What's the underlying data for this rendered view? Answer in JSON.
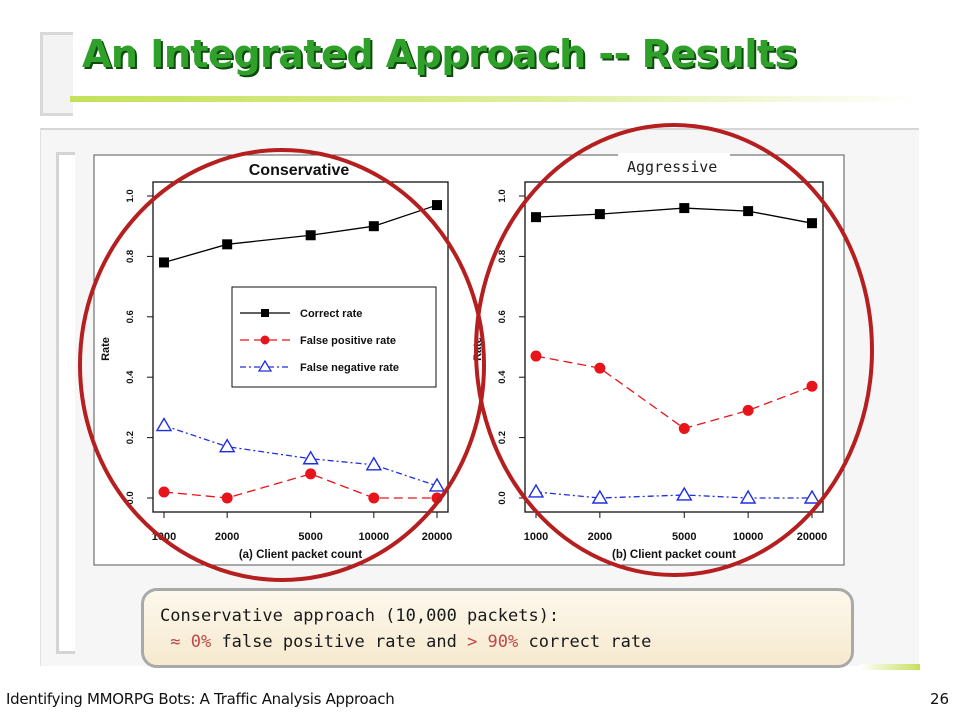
{
  "slide": {
    "title": "An Integrated Approach -- Results",
    "footer_left": "Identifying MMORPG Bots: A Traffic Analysis Approach",
    "page_number": "26"
  },
  "group_labels": {
    "conservative": "Conservative",
    "aggressive": "Aggressive"
  },
  "callout": {
    "line1": "Conservative approach (10,000 packets):",
    "line2_prefix": "≈ 0%",
    "line2_mid1": " false positive rate and ",
    "line2_gt": "> 90%",
    "line2_suffix": " correct rate"
  },
  "colors": {
    "title": "#2fa12a",
    "correct": "#000000",
    "false_positive": "#e8141b",
    "false_negative": "#1f2ee0",
    "highlight_ellipse": "#b51f1f"
  },
  "chart_data": [
    {
      "type": "line",
      "title": "Conservative",
      "xlabel": "(a) Client packet count",
      "ylabel": "Rate",
      "x_scale": "log",
      "categories": [
        "1000",
        "2000",
        "5000",
        "10000",
        "20000"
      ],
      "x": [
        1000,
        2000,
        5000,
        10000,
        20000
      ],
      "ylim": [
        0,
        1
      ],
      "yticks": [
        "0.0",
        "0.2",
        "0.4",
        "0.6",
        "0.8",
        "1.0"
      ],
      "legend": "center-right",
      "series": [
        {
          "name": "Correct rate",
          "marker": "square",
          "values": [
            0.78,
            0.84,
            0.87,
            0.9,
            0.97
          ]
        },
        {
          "name": "False positive rate",
          "marker": "circle",
          "values": [
            0.02,
            0.0,
            0.08,
            0.0,
            0.0
          ]
        },
        {
          "name": "False negative rate",
          "marker": "triangle",
          "values": [
            0.24,
            0.17,
            0.13,
            0.11,
            0.04
          ]
        }
      ]
    },
    {
      "type": "line",
      "title": "",
      "xlabel": "(b) Client packet count",
      "ylabel": "Rate",
      "x_scale": "log",
      "categories": [
        "1000",
        "2000",
        "5000",
        "10000",
        "20000"
      ],
      "x": [
        1000,
        2000,
        5000,
        10000,
        20000
      ],
      "ylim": [
        0,
        1
      ],
      "yticks": [
        "0.0",
        "0.2",
        "0.4",
        "0.6",
        "0.8",
        "1.0"
      ],
      "series": [
        {
          "name": "Correct rate",
          "marker": "square",
          "values": [
            0.93,
            0.94,
            0.96,
            0.95,
            0.91
          ]
        },
        {
          "name": "False positive rate",
          "marker": "circle",
          "values": [
            0.47,
            0.43,
            0.23,
            0.29,
            0.37
          ]
        },
        {
          "name": "False negative rate",
          "marker": "triangle",
          "values": [
            0.02,
            0.0,
            0.01,
            0.0,
            0.0
          ]
        }
      ]
    }
  ]
}
